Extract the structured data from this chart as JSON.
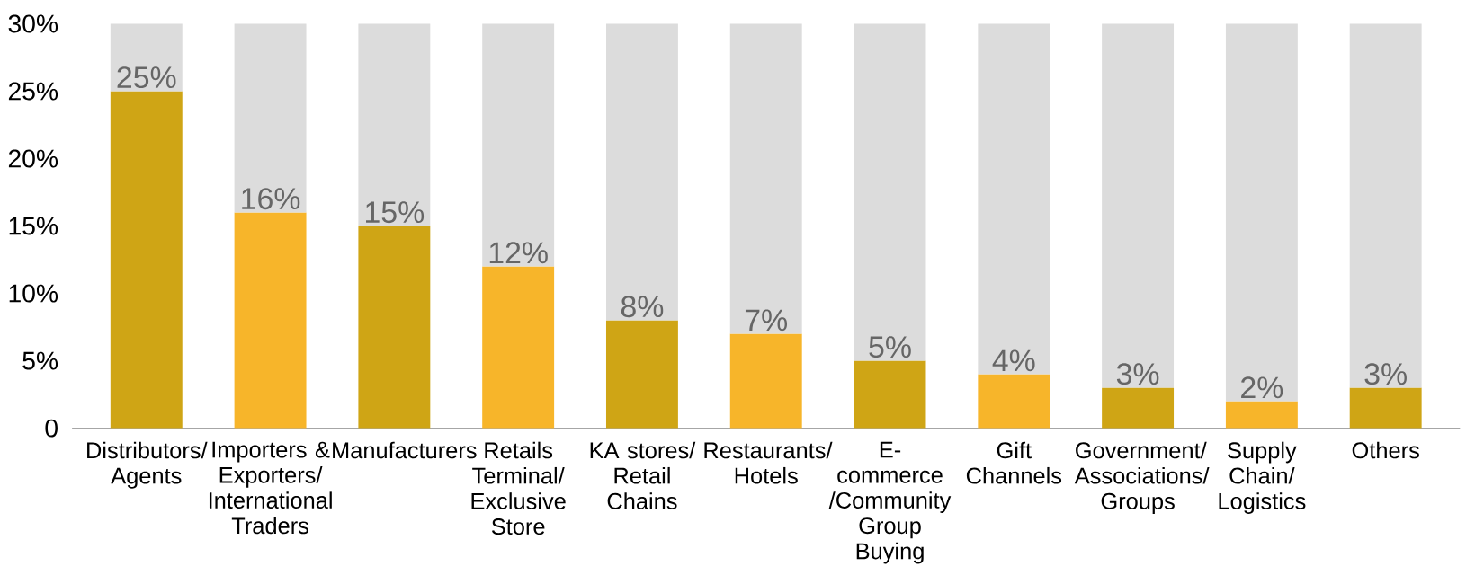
{
  "chart_data": {
    "type": "bar",
    "stacked": true,
    "categories": [
      "Distributors/ Agents",
      "Importers & Exporters/ International Traders",
      "Manufacturers",
      "Retails Terminal/ Exclusive Store",
      "KA stores/ Retail Chains",
      "Restaurants/ Hotels",
      "E-commerce /Community Group Buying",
      "Gift Channels",
      "Government/ Associations/ Groups",
      "Supply Chain/ Logistics",
      "Others"
    ],
    "series": [
      {
        "colors": [
          "#cfa515",
          "#f7b52a",
          "#cfa515",
          "#f7b52a",
          "#cfa515",
          "#f7b52a",
          "#cfa515",
          "#f7b52a",
          "#cfa515",
          "#f7b52a",
          "#cfa515"
        ],
        "values": [
          25,
          16,
          15,
          12,
          8,
          7,
          5,
          4,
          3,
          2,
          3
        ],
        "value_labels": [
          "25%",
          "16%",
          "15%",
          "12%",
          "8%",
          "7%",
          "5%",
          "4%",
          "3%",
          "2%",
          "3%"
        ]
      },
      {
        "color": "#dcdcdc",
        "values": [
          5,
          14,
          15,
          18,
          22,
          23,
          25,
          26,
          27,
          28,
          27
        ]
      }
    ],
    "ylim": [
      0,
      30
    ],
    "yticks": [
      0,
      {
        "value": 5,
        "label": "5%"
      },
      {
        "value": 10,
        "label": "10%"
      },
      {
        "value": 15,
        "label": "15%"
      },
      {
        "value": 20,
        "label": "20%"
      },
      {
        "value": 25,
        "label": "25%"
      },
      {
        "value": 30,
        "label": "30%"
      }
    ]
  }
}
